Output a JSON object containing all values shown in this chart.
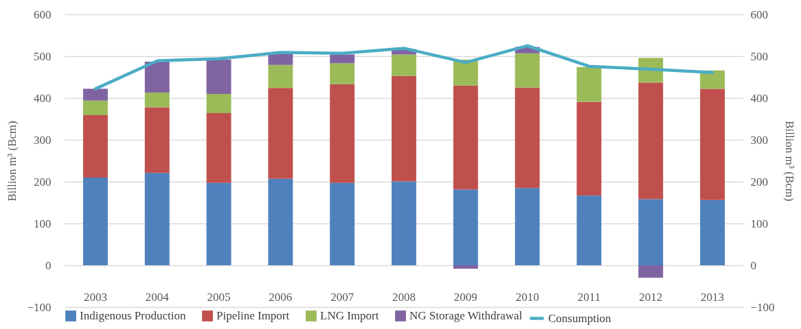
{
  "chart_data": {
    "type": "bar",
    "stacked": true,
    "ylabel": "Billion m³ (Bcm)",
    "y2label": "Billion m³ (Bcm)",
    "categories": [
      "2003",
      "2004",
      "2005",
      "2006",
      "2007",
      "2008",
      "2009",
      "2010",
      "2011",
      "2012",
      "2013"
    ],
    "series": [
      {
        "name": "Indigenous Production",
        "color": "#4f81bd",
        "values": [
          210,
          221,
          197,
          207,
          197,
          201,
          181,
          185,
          167,
          158,
          156
        ]
      },
      {
        "name": "Pipeline Import",
        "color": "#c0504d",
        "values": [
          149,
          157,
          167,
          217,
          236,
          252,
          249,
          240,
          224,
          279,
          266
        ]
      },
      {
        "name": "LNG Import",
        "color": "#9bbb59",
        "values": [
          35,
          35,
          46,
          55,
          50,
          51,
          62,
          82,
          83,
          59,
          44
        ]
      },
      {
        "name": "NG Storage Withdrawal",
        "color": "#8064a2",
        "values": [
          28,
          74,
          82,
          26,
          21,
          13,
          -8,
          15,
          0,
          -30,
          0
        ]
      },
      {
        "name": "Consumption",
        "color": "#4bacc6",
        "type": "line",
        "axis": "y2",
        "values": [
          422,
          489,
          494,
          509,
          507,
          519,
          485,
          525,
          476,
          469,
          461
        ]
      }
    ],
    "ylim": [
      -100,
      600
    ],
    "yticks": [
      -100,
      0,
      100,
      200,
      300,
      400,
      500,
      600
    ],
    "y2lim": [
      -100,
      600
    ],
    "y2ticks": [
      -100,
      0,
      100,
      200,
      300,
      400,
      500,
      600
    ],
    "grid": "y",
    "legend": "bottom",
    "marker": "none"
  }
}
